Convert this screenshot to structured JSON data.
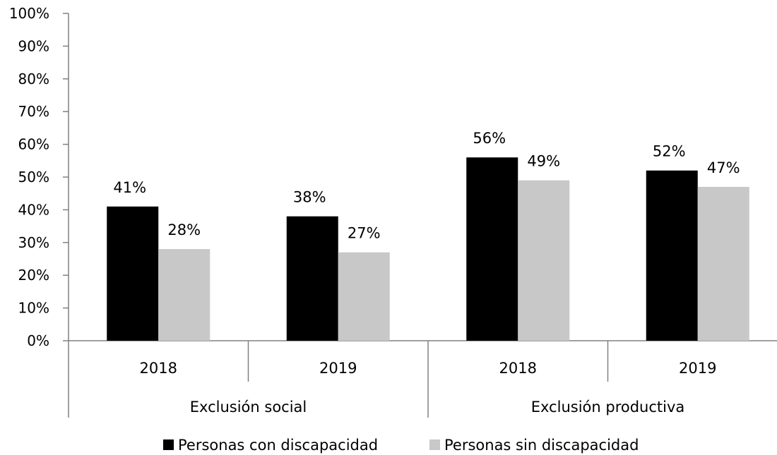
{
  "chart_data": {
    "type": "bar",
    "groups": [
      "Exclusión social",
      "Exclusión productiva"
    ],
    "categories": [
      "2018",
      "2019",
      "2018",
      "2019"
    ],
    "series": [
      {
        "name": "Personas con discapacidad",
        "color": "#000000",
        "values": [
          41,
          38,
          56,
          52
        ]
      },
      {
        "name": "Personas sin discapacidad",
        "color": "#c8c8c8",
        "values": [
          28,
          27,
          49,
          47
        ]
      }
    ],
    "data_labels": [
      [
        "41%",
        "38%",
        "56%",
        "52%"
      ],
      [
        "28%",
        "27%",
        "49%",
        "47%"
      ]
    ],
    "yticks": [
      "0%",
      "10%",
      "20%",
      "30%",
      "40%",
      "50%",
      "60%",
      "70%",
      "80%",
      "90%",
      "100%"
    ],
    "ylim": [
      0,
      100
    ],
    "grid": false,
    "legend_position": "bottom"
  }
}
